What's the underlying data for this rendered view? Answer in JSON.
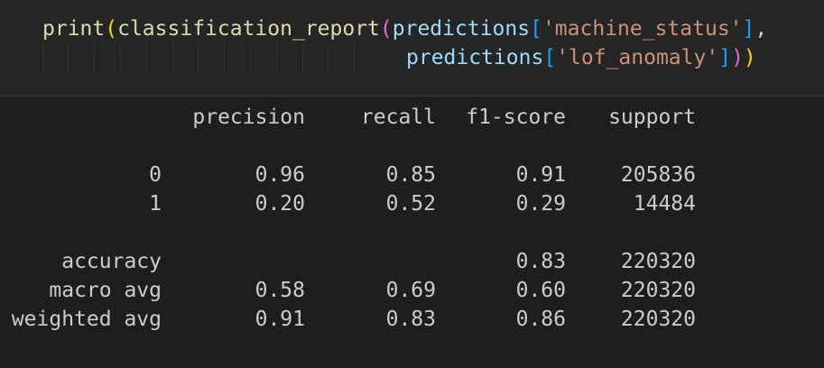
{
  "code": {
    "line1": {
      "fn": "print",
      "open_paren_outer": "(",
      "fn2": "classification_report",
      "open_paren_inner": "(",
      "var1": "predictions",
      "open_bracket1": "[",
      "str1": "'machine_status'",
      "close_bracket1": "]",
      "comma": ","
    },
    "line2": {
      "var2": "predictions",
      "open_bracket2": "[",
      "str2": "'lof_anomaly'",
      "close_bracket2": "]",
      "close_paren_inner": ")",
      "close_paren_outer": ")"
    }
  },
  "report": {
    "headers": {
      "precision": "precision",
      "recall": "recall",
      "f1": "f1-score",
      "support": "support"
    },
    "rows": [
      {
        "label": "0",
        "precision": "0.96",
        "recall": "0.85",
        "f1": "0.91",
        "support": "205836"
      },
      {
        "label": "1",
        "precision": "0.20",
        "recall": "0.52",
        "f1": "0.29",
        "support": "14484"
      }
    ],
    "accuracy": {
      "label": "accuracy",
      "f1": "0.83",
      "support": "220320"
    },
    "macro": {
      "label": "macro avg",
      "precision": "0.58",
      "recall": "0.69",
      "f1": "0.60",
      "support": "220320"
    },
    "weighted": {
      "label": "weighted avg",
      "precision": "0.91",
      "recall": "0.83",
      "f1": "0.86",
      "support": "220320"
    }
  },
  "colors": {
    "background": "#1e1e1e",
    "cell_background": "#252526",
    "function": "#dcdcaa",
    "variable": "#9cdcfe",
    "string": "#ce9178",
    "paren_outer": "#ffd700",
    "paren_inner": "#da70d6",
    "bracket": "#179fff"
  }
}
